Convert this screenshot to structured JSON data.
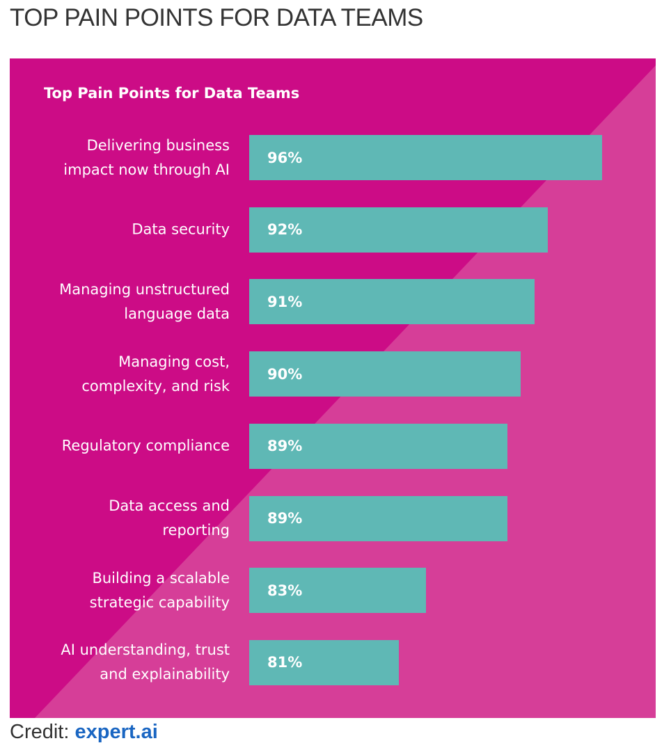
{
  "header": {
    "title": "TOP PAIN POINTS FOR DATA TEAMS"
  },
  "chart_data": {
    "type": "bar",
    "orientation": "horizontal",
    "title": "Top Pain Points for Data Teams",
    "categories": [
      "Delivering business\nimpact now through AI",
      "Data security",
      "Managing unstructured\nlanguage data",
      "Managing cost,\ncomplexity, and risk",
      "Regulatory compliance",
      "Data access and\nreporting",
      "Building a scalable\nstrategic capability",
      "AI understanding, trust\nand explainability"
    ],
    "values": [
      96,
      92,
      91,
      90,
      89,
      89,
      83,
      81
    ],
    "value_labels": [
      "96%",
      "92%",
      "91%",
      "90%",
      "89%",
      "89%",
      "83%",
      "81%"
    ],
    "color": "#5fb8b5",
    "xlim": [
      70,
      96
    ]
  },
  "credit": {
    "label": "Credit:",
    "source": "expert.ai"
  }
}
